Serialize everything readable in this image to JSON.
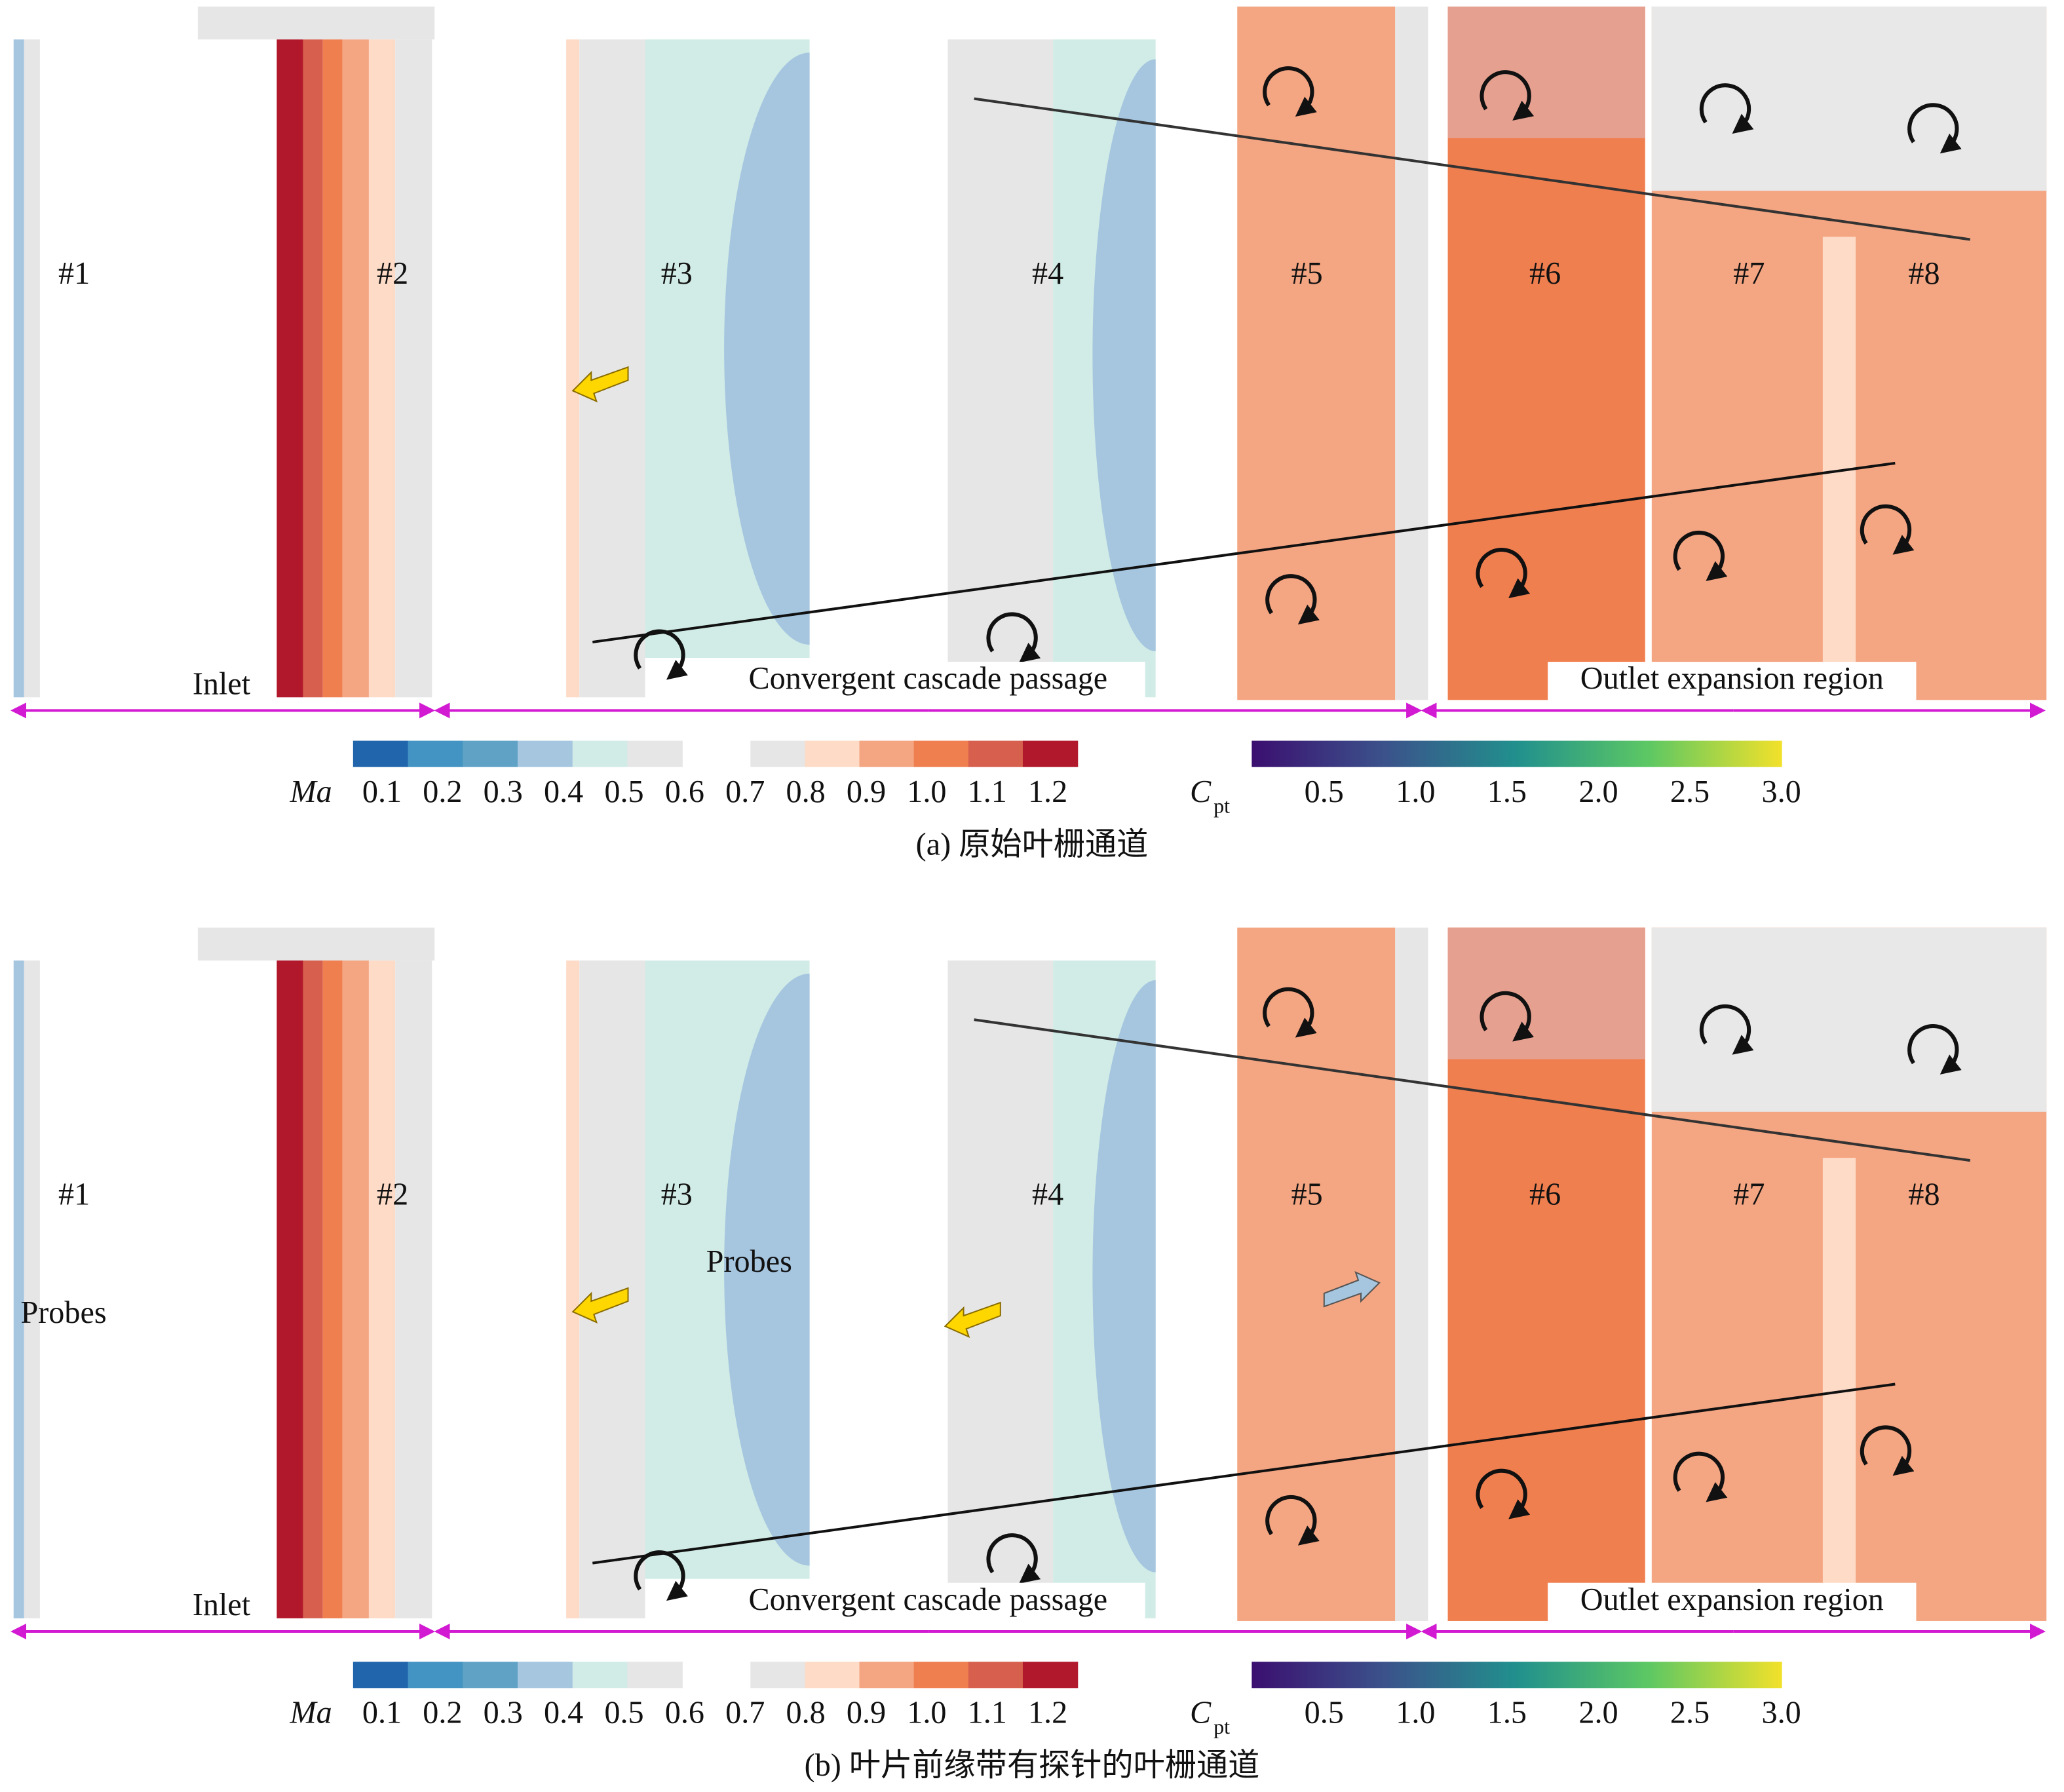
{
  "panels": [
    {
      "sections": [
        "#1",
        "#2",
        "#3",
        "#4",
        "#5",
        "#6",
        "#7",
        "#8"
      ],
      "regions": [
        "Inlet",
        "Convergent cascade passage",
        "Outlet expansion region"
      ],
      "probes": [],
      "ma_legend": {
        "label": "Ma",
        "ticks": [
          "0.1",
          "0.2",
          "0.3",
          "0.4",
          "0.5",
          "0.6",
          "0.7",
          "0.8",
          "0.9",
          "1.0",
          "1.1",
          "1.2"
        ]
      },
      "cpt_legend": {
        "label": "C",
        "subscript": "pt",
        "ticks": [
          "0.5",
          "1.0",
          "1.5",
          "2.0",
          "2.5",
          "3.0"
        ]
      },
      "caption": "(a) 原始叶栅通道"
    },
    {
      "sections": [
        "#1",
        "#2",
        "#3",
        "#4",
        "#5",
        "#6",
        "#7",
        "#8"
      ],
      "regions": [
        "Inlet",
        "Convergent cascade passage",
        "Outlet expansion region"
      ],
      "probes": [
        "Probes",
        "Probes"
      ],
      "ma_legend": {
        "label": "Ma",
        "ticks": [
          "0.1",
          "0.2",
          "0.3",
          "0.4",
          "0.5",
          "0.6",
          "0.7",
          "0.8",
          "0.9",
          "1.0",
          "1.1",
          "1.2"
        ]
      },
      "cpt_legend": {
        "label": "C",
        "subscript": "pt",
        "ticks": [
          "0.5",
          "1.0",
          "1.5",
          "2.0",
          "2.5",
          "3.0"
        ]
      },
      "caption": "(b) 叶片前缘带有探针的叶栅通道"
    }
  ]
}
